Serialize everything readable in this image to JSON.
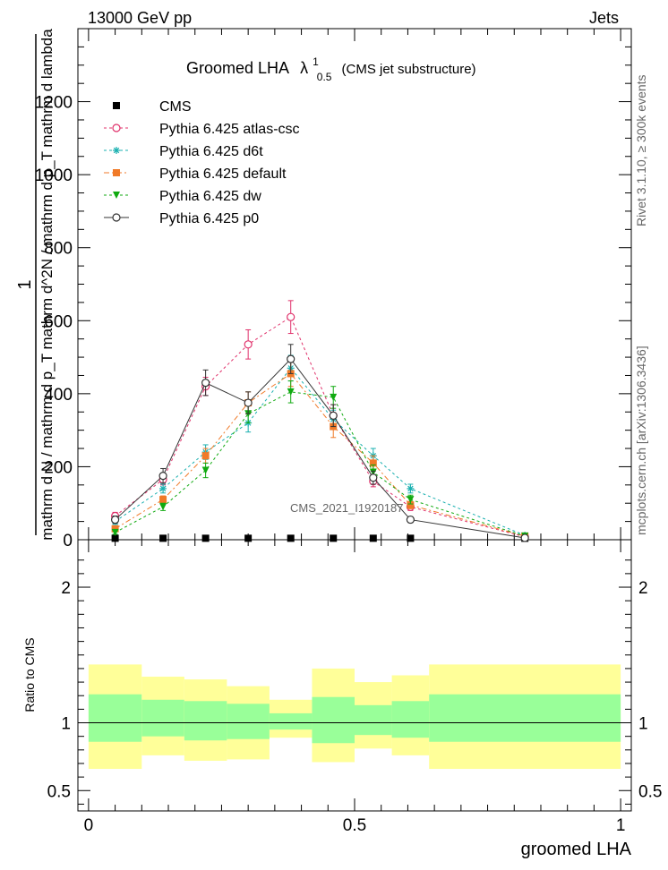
{
  "header": {
    "left": "13000 GeV pp",
    "right": "Jets"
  },
  "side_labels": {
    "rivet": "Rivet 3.1.10, ≥ 300k events",
    "mcplots": "mcplots.cern.ch [arXiv:1306.3436]"
  },
  "chart_data": {
    "type": "scatter",
    "title": "Groomed LHA",
    "title_symbol": "λ",
    "title_sup": "1",
    "title_sub": "0.5",
    "title_note": "(CMS jet substructure)",
    "watermark": "CMS_2021_I1920187",
    "main_panel": {
      "ylabel_numerator": "1",
      "ylabel_denominator": "mathrm d N / mathrm d p_T mathrm d^2N / mathrm d p_T mathrm d lambda",
      "ylim": [
        0,
        1400
      ],
      "yticks": [
        0,
        200,
        400,
        600,
        800,
        1000,
        1200
      ],
      "ytick_labels": [
        "0",
        "200",
        "400",
        "600",
        "800",
        "1000",
        "1200"
      ]
    },
    "ratio_panel": {
      "ylabel": "Ratio to CMS",
      "ylim": [
        0.35,
        2.35
      ],
      "yticks": [
        0.5,
        1,
        2
      ],
      "ytick_labels": [
        "0.5",
        "1",
        "2"
      ]
    },
    "xlabel": "groomed LHA",
    "xlim": [
      -0.02,
      1.02
    ],
    "xticks": [
      0,
      0.5,
      1
    ],
    "xtick_labels": [
      "0",
      "0.5",
      "1"
    ],
    "x": [
      0.05,
      0.14,
      0.22,
      0.3,
      0.38,
      0.46,
      0.535,
      0.605,
      0.82
    ],
    "legend": {
      "position": "top-left"
    },
    "series": [
      {
        "name": "CMS",
        "color": "#000000",
        "marker": "square",
        "dash": "",
        "y": [
          4,
          4,
          4,
          4,
          4,
          4,
          4,
          4,
          4
        ],
        "err": [
          0,
          0,
          0,
          0,
          0,
          0,
          0,
          0,
          0
        ],
        "connect": false
      },
      {
        "name": "Pythia 6.425 atlas-csc",
        "color": "#e0306a",
        "marker": "circle-open",
        "dash": "3,3",
        "y": [
          65,
          165,
          420,
          535,
          610,
          340,
          160,
          90,
          8
        ],
        "err": [
          10,
          15,
          25,
          40,
          45,
          30,
          15,
          10,
          2
        ],
        "connect": true
      },
      {
        "name": "Pythia 6.425 d6t",
        "color": "#1ab0b0",
        "marker": "star",
        "dash": "3,3",
        "y": [
          50,
          140,
          240,
          320,
          470,
          330,
          230,
          140,
          12
        ],
        "err": [
          8,
          12,
          20,
          25,
          35,
          25,
          20,
          12,
          2
        ],
        "connect": true
      },
      {
        "name": "Pythia 6.425 default",
        "color": "#f07a28",
        "marker": "square-filled",
        "dash": "6,3,2,3",
        "y": [
          30,
          110,
          230,
          375,
          455,
          310,
          210,
          95,
          10
        ],
        "err": [
          6,
          10,
          20,
          30,
          35,
          30,
          20,
          10,
          2
        ],
        "connect": true
      },
      {
        "name": "Pythia 6.425 dw",
        "color": "#10aa10",
        "marker": "triangle-down",
        "dash": "3,3",
        "y": [
          20,
          90,
          190,
          345,
          405,
          390,
          185,
          110,
          10
        ],
        "err": [
          5,
          10,
          20,
          25,
          30,
          30,
          20,
          12,
          2
        ],
        "connect": true
      },
      {
        "name": "Pythia 6.425 p0",
        "color": "#333333",
        "marker": "circle-open",
        "dash": "",
        "y": [
          55,
          175,
          430,
          375,
          495,
          340,
          170,
          55,
          5
        ],
        "err": [
          10,
          20,
          35,
          30,
          40,
          30,
          18,
          8,
          2
        ],
        "connect": true
      }
    ],
    "ratio_bands": {
      "bin_edges": [
        0,
        0.1,
        0.18,
        0.26,
        0.34,
        0.42,
        0.5,
        0.57,
        0.64,
        1.0
      ],
      "inner_low": [
        0.86,
        0.9,
        0.87,
        0.88,
        0.95,
        0.85,
        0.91,
        0.89,
        0.86
      ],
      "inner_high": [
        1.21,
        1.17,
        1.16,
        1.14,
        1.07,
        1.19,
        1.13,
        1.16,
        1.21
      ],
      "outer_low": [
        0.66,
        0.76,
        0.72,
        0.73,
        0.89,
        0.71,
        0.81,
        0.76,
        0.66
      ],
      "outer_high": [
        1.43,
        1.34,
        1.32,
        1.27,
        1.17,
        1.4,
        1.3,
        1.35,
        1.43
      ],
      "inner_color": "#99ff99",
      "outer_color": "#ffff99"
    }
  }
}
